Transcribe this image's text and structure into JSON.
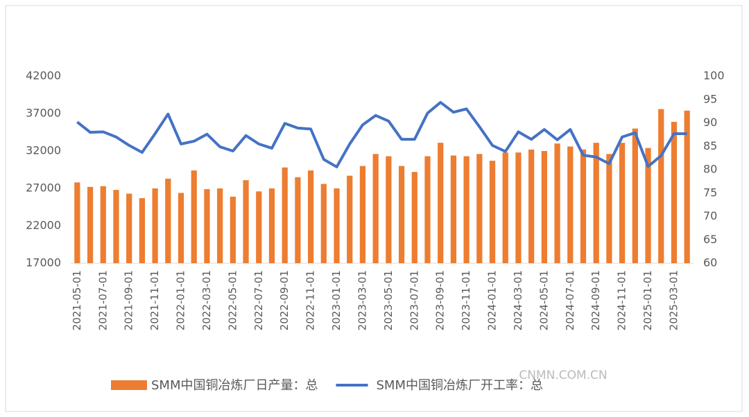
{
  "chart_data": {
    "type": "combo",
    "categories": [
      "2021-05-01",
      null,
      "2021-07-01",
      null,
      "2021-09-01",
      null,
      "2021-11-01",
      null,
      "2022-01-01",
      null,
      "2022-03-01",
      null,
      "2022-05-01",
      null,
      "2022-07-01",
      null,
      "2022-09-01",
      null,
      "2022-11-01",
      null,
      "2023-01-01",
      null,
      "2023-03-01",
      null,
      "2023-05-01",
      null,
      "2023-07-01",
      null,
      "2023-09-01",
      null,
      "2023-11-01",
      null,
      "2024-01-01",
      null,
      "2024-03-01",
      null,
      "2024-05-01",
      null,
      "2024-07-01",
      null,
      "2024-09-01",
      null,
      "2024-11-01",
      null,
      "2025-01-01",
      null,
      "2025-03-01",
      null
    ],
    "series": [
      {
        "name": "SMM中国铜冶炼厂日产量：总",
        "type": "bar",
        "color": "#ed7d31",
        "values": [
          27800,
          27200,
          27300,
          26800,
          26300,
          25700,
          27000,
          28300,
          26400,
          29400,
          26900,
          27000,
          25900,
          28100,
          26600,
          27000,
          29800,
          28500,
          29400,
          27600,
          27000,
          28700,
          30000,
          31600,
          31300,
          30000,
          29200,
          31300,
          33100,
          31400,
          31300,
          31600,
          30700,
          31800,
          31800,
          32200,
          32000,
          33000,
          32600,
          32200,
          33100,
          31600,
          33100,
          35000,
          32400,
          37600,
          35900,
          37400
        ]
      },
      {
        "name": "SMM中国铜冶炼厂开工率：总",
        "type": "line",
        "axis": "y2",
        "color": "#4472c4",
        "values": [
          90.2,
          88.0,
          88.1,
          87.0,
          85.2,
          83.7,
          87.7,
          91.9,
          85.5,
          86.1,
          87.6,
          84.9,
          84.0,
          87.3,
          85.5,
          84.6,
          89.9,
          88.9,
          88.7,
          82.2,
          80.6,
          85.5,
          89.6,
          91.6,
          90.4,
          86.5,
          86.5,
          92.1,
          94.4,
          92.3,
          93.0,
          89.2,
          85.2,
          83.9,
          88.1,
          86.5,
          88.6,
          86.4,
          88.6,
          83.1,
          82.7,
          81.3,
          87.0,
          87.9,
          80.7,
          83.0,
          87.7,
          87.7
        ]
      }
    ],
    "ylim": [
      17000,
      42000
    ],
    "yticks": [
      17000,
      22000,
      27000,
      32000,
      37000,
      42000
    ],
    "y2lim": [
      60,
      100
    ],
    "y2ticks": [
      60,
      65,
      70,
      75,
      80,
      85,
      90,
      95,
      100
    ],
    "watermark": "CNMN.COM.CN"
  }
}
